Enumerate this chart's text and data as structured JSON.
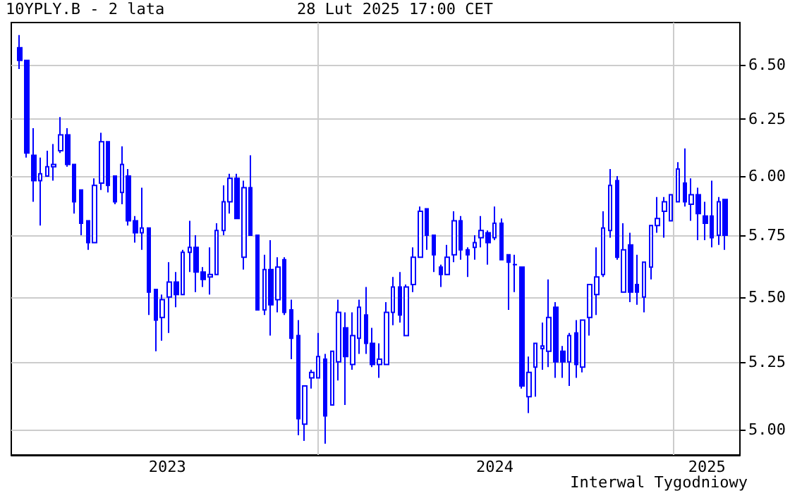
{
  "chart_data": {
    "type": "candlestick",
    "title": "10YPLY.B - 2 lata",
    "subtitle": "28 Lut 2025 17:00 CET",
    "annotations": [
      "Interwal Tygodniowy"
    ],
    "color": "#0000ff",
    "x": [
      "2023-02-27",
      "2023-03-06",
      "2023-03-13",
      "2023-03-20",
      "2023-03-27",
      "2023-04-03",
      "2023-04-10",
      "2023-04-17",
      "2023-04-24",
      "2023-05-01",
      "2023-05-08",
      "2023-05-15",
      "2023-05-22",
      "2023-05-29",
      "2023-06-05",
      "2023-06-12",
      "2023-06-19",
      "2023-06-26",
      "2023-07-03",
      "2023-07-10",
      "2023-07-17",
      "2023-07-24",
      "2023-07-31",
      "2023-08-07",
      "2023-08-14",
      "2023-08-21",
      "2023-08-28",
      "2023-09-04",
      "2023-09-11",
      "2023-09-18",
      "2023-09-25",
      "2023-10-02",
      "2023-10-09",
      "2023-10-16",
      "2023-10-23",
      "2023-10-30",
      "2023-11-06",
      "2023-11-13",
      "2023-11-20",
      "2023-11-27",
      "2023-12-04",
      "2023-12-11",
      "2023-12-18",
      "2023-12-25",
      "2024-01-01",
      "2024-01-08",
      "2024-01-15",
      "2024-01-22",
      "2024-01-29",
      "2024-02-05",
      "2024-02-12",
      "2024-02-19",
      "2024-02-26",
      "2024-03-04",
      "2024-03-11",
      "2024-03-18",
      "2024-03-25",
      "2024-04-01",
      "2024-04-08",
      "2024-04-15",
      "2024-04-22",
      "2024-04-29",
      "2024-05-06",
      "2024-05-13",
      "2024-05-20",
      "2024-05-27",
      "2024-06-03",
      "2024-06-10",
      "2024-06-17",
      "2024-06-24",
      "2024-07-01",
      "2024-07-08",
      "2024-07-15",
      "2024-07-22",
      "2024-07-29",
      "2024-08-05",
      "2024-08-12",
      "2024-08-19",
      "2024-08-26",
      "2024-09-02",
      "2024-09-09",
      "2024-09-16",
      "2024-09-23",
      "2024-09-30",
      "2024-10-07",
      "2024-10-14",
      "2024-10-21",
      "2024-10-28",
      "2024-11-04",
      "2024-11-11",
      "2024-11-18",
      "2024-11-25",
      "2024-12-02",
      "2024-12-09",
      "2024-12-16",
      "2024-12-23",
      "2024-12-30",
      "2025-01-06",
      "2025-01-13",
      "2025-01-20",
      "2025-01-27",
      "2025-02-03",
      "2025-02-10",
      "2025-02-17",
      "2025-02-24"
    ],
    "ohlc": [
      [
        6.58,
        6.64,
        6.48,
        6.52
      ],
      [
        6.52,
        6.52,
        6.08,
        6.1
      ],
      [
        6.09,
        6.21,
        5.89,
        5.98
      ],
      [
        5.98,
        6.08,
        5.79,
        6.01
      ],
      [
        6.0,
        6.11,
        6.0,
        6.04
      ],
      [
        6.04,
        6.14,
        5.98,
        6.05
      ],
      [
        6.11,
        6.26,
        6.1,
        6.18
      ],
      [
        6.18,
        6.21,
        6.04,
        6.05
      ],
      [
        6.05,
        6.05,
        5.84,
        5.89
      ],
      [
        5.94,
        5.94,
        5.75,
        5.8
      ],
      [
        5.81,
        5.81,
        5.69,
        5.72
      ],
      [
        5.72,
        5.99,
        5.72,
        5.96
      ],
      [
        5.97,
        6.19,
        5.94,
        6.15
      ],
      [
        6.15,
        6.15,
        5.93,
        5.96
      ],
      [
        6.0,
        6.0,
        5.88,
        5.89
      ],
      [
        5.93,
        6.13,
        5.88,
        6.05
      ],
      [
        6.0,
        6.03,
        5.79,
        5.81
      ],
      [
        5.81,
        5.83,
        5.72,
        5.76
      ],
      [
        5.76,
        5.95,
        5.69,
        5.78
      ],
      [
        5.78,
        5.78,
        5.43,
        5.52
      ],
      [
        5.53,
        5.53,
        5.29,
        5.41
      ],
      [
        5.42,
        5.51,
        5.33,
        5.49
      ],
      [
        5.5,
        5.64,
        5.36,
        5.56
      ],
      [
        5.56,
        5.6,
        5.46,
        5.51
      ],
      [
        5.51,
        5.69,
        5.51,
        5.68
      ],
      [
        5.68,
        5.81,
        5.6,
        5.7
      ],
      [
        5.7,
        5.75,
        5.52,
        5.6
      ],
      [
        5.6,
        5.62,
        5.54,
        5.57
      ],
      [
        5.58,
        5.7,
        5.51,
        5.59
      ],
      [
        5.59,
        5.8,
        5.59,
        5.77
      ],
      [
        5.77,
        5.96,
        5.75,
        5.89
      ],
      [
        5.89,
        6.01,
        5.84,
        5.99
      ],
      [
        5.99,
        6.01,
        5.82,
        5.82
      ],
      [
        5.66,
        5.98,
        5.61,
        5.95
      ],
      [
        5.95,
        6.09,
        5.75,
        5.75
      ],
      [
        5.75,
        5.75,
        5.45,
        5.45
      ],
      [
        5.45,
        5.67,
        5.43,
        5.61
      ],
      [
        5.61,
        5.73,
        5.35,
        5.47
      ],
      [
        5.49,
        5.66,
        5.44,
        5.62
      ],
      [
        5.65,
        5.66,
        5.43,
        5.44
      ],
      [
        5.45,
        5.49,
        5.26,
        5.34
      ],
      [
        5.35,
        5.41,
        4.98,
        5.04
      ],
      [
        5.02,
        5.16,
        4.96,
        5.16
      ],
      [
        5.19,
        5.22,
        5.15,
        5.21
      ],
      [
        5.19,
        5.36,
        5.19,
        5.27
      ],
      [
        5.26,
        5.28,
        4.95,
        5.05
      ],
      [
        5.09,
        5.29,
        5.09,
        5.29
      ],
      [
        5.25,
        5.49,
        5.18,
        5.44
      ],
      [
        5.38,
        5.44,
        5.09,
        5.27
      ],
      [
        5.24,
        5.44,
        5.22,
        5.35
      ],
      [
        5.34,
        5.49,
        5.28,
        5.46
      ],
      [
        5.43,
        5.54,
        5.28,
        5.32
      ],
      [
        5.32,
        5.38,
        5.23,
        5.24
      ],
      [
        5.24,
        5.32,
        5.19,
        5.26
      ],
      [
        5.24,
        5.48,
        5.24,
        5.44
      ],
      [
        5.44,
        5.58,
        5.39,
        5.54
      ],
      [
        5.54,
        5.6,
        5.4,
        5.43
      ],
      [
        5.35,
        5.55,
        5.35,
        5.54
      ],
      [
        5.55,
        5.7,
        5.52,
        5.66
      ],
      [
        5.66,
        5.87,
        5.66,
        5.85
      ],
      [
        5.86,
        5.86,
        5.69,
        5.75
      ],
      [
        5.75,
        5.75,
        5.6,
        5.67
      ],
      [
        5.62,
        5.63,
        5.54,
        5.59
      ],
      [
        5.59,
        5.71,
        5.59,
        5.66
      ],
      [
        5.67,
        5.85,
        5.64,
        5.81
      ],
      [
        5.81,
        5.83,
        5.65,
        5.69
      ],
      [
        5.69,
        5.7,
        5.58,
        5.67
      ],
      [
        5.7,
        5.75,
        5.65,
        5.72
      ],
      [
        5.74,
        5.83,
        5.7,
        5.77
      ],
      [
        5.76,
        5.77,
        5.63,
        5.72
      ],
      [
        5.74,
        5.87,
        5.73,
        5.8
      ],
      [
        5.8,
        5.82,
        5.65,
        5.65
      ],
      [
        5.67,
        5.67,
        5.45,
        5.64
      ],
      [
        5.63,
        5.67,
        5.52,
        5.63
      ],
      [
        5.62,
        5.62,
        5.15,
        5.16
      ],
      [
        5.12,
        5.27,
        5.06,
        5.21
      ],
      [
        5.23,
        5.32,
        5.12,
        5.32
      ],
      [
        5.3,
        5.4,
        5.22,
        5.31
      ],
      [
        5.29,
        5.57,
        5.23,
        5.42
      ],
      [
        5.46,
        5.48,
        5.19,
        5.25
      ],
      [
        5.29,
        5.31,
        5.19,
        5.25
      ],
      [
        5.25,
        5.36,
        5.16,
        5.35
      ],
      [
        5.36,
        5.41,
        5.19,
        5.24
      ],
      [
        5.23,
        5.41,
        5.21,
        5.41
      ],
      [
        5.42,
        5.55,
        5.35,
        5.55
      ],
      [
        5.51,
        5.7,
        5.43,
        5.58
      ],
      [
        5.59,
        5.85,
        5.58,
        5.78
      ],
      [
        5.77,
        6.03,
        5.74,
        5.96
      ],
      [
        5.98,
        6.0,
        5.65,
        5.66
      ],
      [
        5.52,
        5.8,
        5.52,
        5.69
      ],
      [
        5.71,
        5.76,
        5.48,
        5.52
      ],
      [
        5.55,
        5.67,
        5.47,
        5.52
      ],
      [
        5.5,
        5.64,
        5.44,
        5.64
      ],
      [
        5.62,
        5.79,
        5.57,
        5.79
      ],
      [
        5.79,
        5.91,
        5.76,
        5.82
      ],
      [
        5.85,
        5.91,
        5.74,
        5.89
      ],
      [
        5.81,
        5.92,
        5.81,
        5.92
      ],
      [
        5.89,
        6.06,
        5.89,
        6.03
      ],
      [
        5.97,
        6.12,
        5.87,
        5.89
      ],
      [
        5.88,
        5.99,
        5.81,
        5.92
      ],
      [
        5.92,
        5.95,
        5.73,
        5.84
      ],
      [
        5.83,
        5.89,
        5.73,
        5.8
      ],
      [
        5.83,
        5.98,
        5.7,
        5.74
      ],
      [
        5.75,
        5.91,
        5.71,
        5.89
      ],
      [
        5.9,
        5.9,
        5.69,
        5.75
      ]
    ],
    "log": "y",
    "ylim": [
      4.91,
      6.7
    ],
    "yticks": [
      {
        "value": 5,
        "label": "5.00"
      },
      {
        "value": 5.25,
        "label": "5.25"
      },
      {
        "value": 5.5,
        "label": "5.50"
      },
      {
        "value": 5.75,
        "label": "5.75"
      },
      {
        "value": 6,
        "label": "6.00"
      },
      {
        "value": 6.25,
        "label": "6.25"
      },
      {
        "value": 6.5,
        "label": "6.50"
      }
    ],
    "xlim": [
      "2023-02-18",
      "2025-03-11"
    ],
    "xticks": [
      {
        "value": "2023-07-29",
        "label": "2023"
      },
      {
        "value": "2024-01-01",
        "label": null
      },
      {
        "value": "2024-07-01",
        "label": "2024"
      },
      {
        "value": "2025-01-01",
        "label": null
      },
      {
        "value": "2025-02-05",
        "label": "2025"
      }
    ],
    "grid": true
  }
}
